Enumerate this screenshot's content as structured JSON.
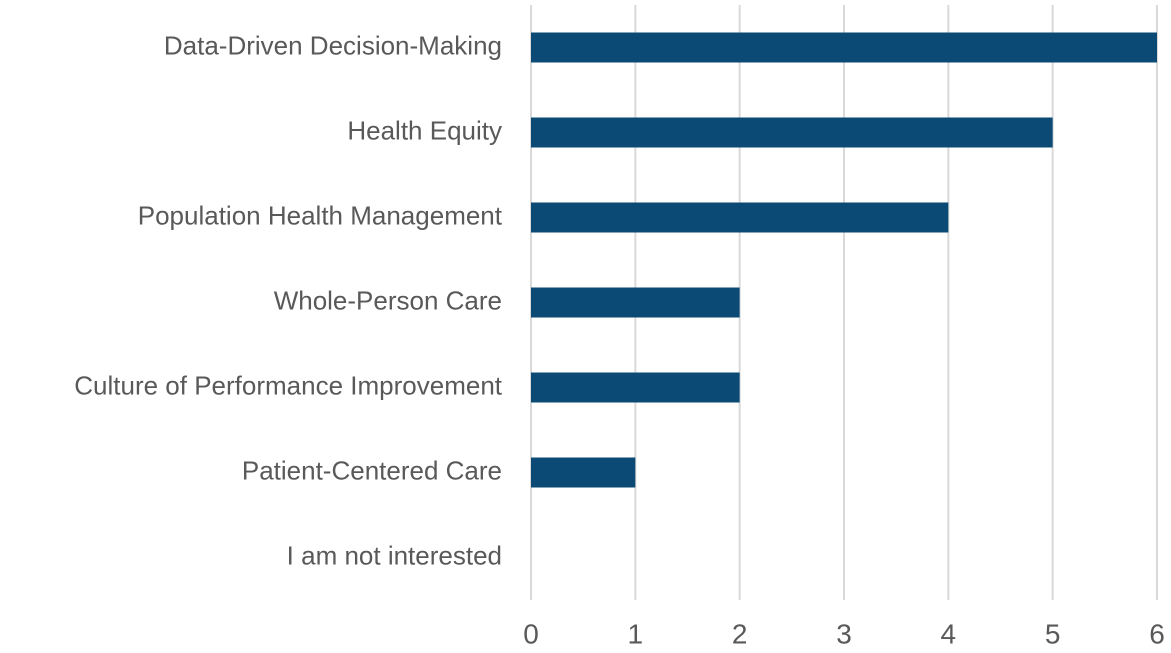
{
  "chart_data": {
    "type": "bar",
    "orientation": "horizontal",
    "categories": [
      "Data-Driven Decision-Making",
      "Health Equity",
      "Population Health Management",
      "Whole-Person Care",
      "Culture of Performance Improvement",
      "Patient-Centered Care",
      "I am not interested"
    ],
    "values": [
      6,
      5,
      4,
      2,
      2,
      1,
      0
    ],
    "color": "#0b4a75",
    "xlim": [
      0,
      6
    ],
    "xticks": [
      0,
      1,
      2,
      3,
      4,
      5,
      6
    ],
    "grid": true
  }
}
